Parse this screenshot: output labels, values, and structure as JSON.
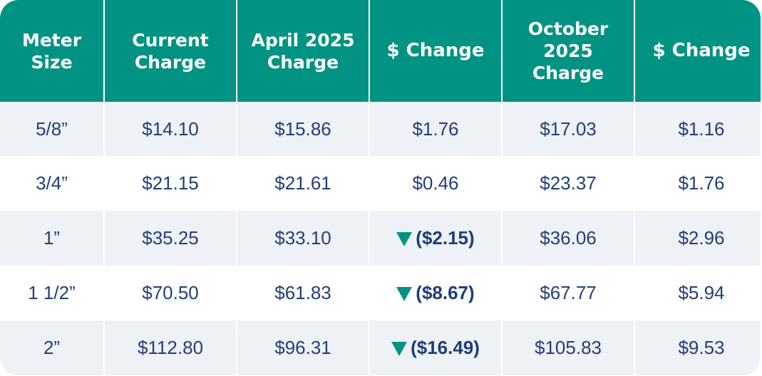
{
  "header": {
    "meter_size": "Meter\nSize",
    "current_charge": "Current\nCharge",
    "april_2025_charge": "April 2025\nCharge",
    "change_1": "$ Change",
    "october_2025_charge": "October\n2025\nCharge",
    "change_2": "$ Change"
  },
  "rows": [
    {
      "meter_size": "5/8”",
      "current": "$14.10",
      "april": "$15.86",
      "change_april": "$1.76",
      "change_april_direction": "up",
      "october": "$17.03",
      "change_october": "$1.16"
    },
    {
      "meter_size": "3/4”",
      "current": "$21.15",
      "april": "$21.61",
      "change_april": "$0.46",
      "change_april_direction": "up",
      "october": "$23.37",
      "change_october": "$1.76"
    },
    {
      "meter_size": "1”",
      "current": "$35.25",
      "april": "$33.10",
      "change_april": "($2.15)",
      "change_april_direction": "down",
      "october": "$36.06",
      "change_october": "$2.96"
    },
    {
      "meter_size": "1 1/2”",
      "current": "$70.50",
      "april": "$61.83",
      "change_april": "($8.67)",
      "change_april_direction": "down",
      "october": "$67.77",
      "change_october": "$5.94"
    },
    {
      "meter_size": "2”",
      "current": "$112.80",
      "april": "$96.31",
      "change_april": "($16.49)",
      "change_april_direction": "down",
      "october": "$105.83",
      "change_october": "$9.53"
    }
  ],
  "icons": {
    "decrease": "down-triangle-icon"
  },
  "colors": {
    "header_bg": "#009383",
    "header_text": "#ffffff",
    "body_text": "#223e7a",
    "alt_row_bg": "#eef2f6",
    "decrease_icon": "#009383"
  }
}
